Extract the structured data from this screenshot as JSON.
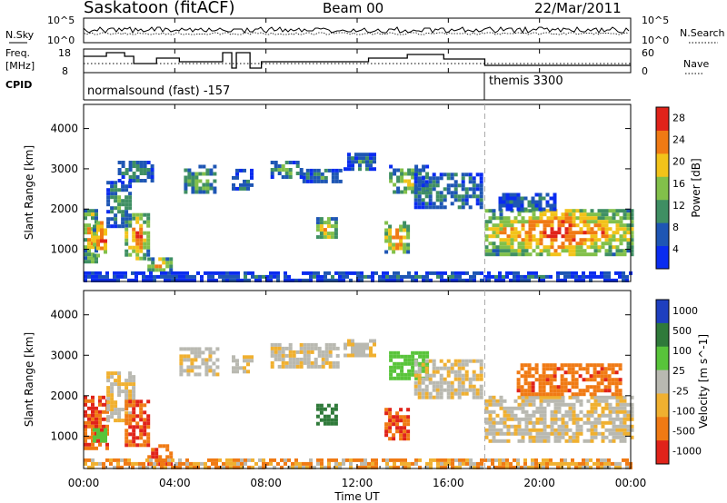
{
  "header": {
    "station": "Saskatoon (fitACF)",
    "beam": "Beam 00",
    "date": "22/Mar/2011"
  },
  "noise_panel": {
    "left_label": "N.Sky",
    "right_label": "N.Search",
    "tick_top": "10^5",
    "tick_bottom": "10^0",
    "right_tick_top": "10^5",
    "right_tick_bottom": "10^0"
  },
  "freq_panel": {
    "left_label_1": "Freq.",
    "left_label_2": "[MHz]",
    "right_label": "Nave",
    "left_ticks": [
      "18",
      "8"
    ],
    "right_ticks": [
      "60",
      "0"
    ]
  },
  "cpid": {
    "label": "CPID",
    "segments": [
      "normalsound (fast) -157",
      "themis 3300"
    ]
  },
  "x_axis": {
    "title": "Time UT",
    "tick_labels": [
      "00:00",
      "04:00",
      "08:00",
      "12:00",
      "16:00",
      "20:00",
      "00:00"
    ]
  },
  "chart_data": [
    {
      "type": "heatmap",
      "title": "Power",
      "ylabel": "Slant Range [km]",
      "xlabel": "Time UT",
      "xlim_hours": [
        0,
        24
      ],
      "ylim": [
        200,
        4600
      ],
      "y_ticks": [
        1000,
        2000,
        3000,
        4000
      ],
      "colorbar": {
        "label": "Power [dB]",
        "ticks": [
          "4",
          "8",
          "12",
          "16",
          "20",
          "24",
          "28"
        ],
        "colors": [
          "#0a2cf0",
          "#1e56b4",
          "#3f8f63",
          "#82c04a",
          "#f2c31a",
          "#f07a14",
          "#e0231a"
        ]
      },
      "regions": [
        {
          "t": [
            0.0,
            0.5
          ],
          "r": [
            700,
            2000
          ],
          "level": 0.7
        },
        {
          "t": [
            0.4,
            1.0
          ],
          "r": [
            800,
            1700
          ],
          "level": 0.85
        },
        {
          "t": [
            1.0,
            2.0
          ],
          "r": [
            1600,
            2700
          ],
          "level": 0.35
        },
        {
          "t": [
            1.8,
            2.8
          ],
          "r": [
            800,
            1900
          ],
          "level": 0.75
        },
        {
          "t": [
            2.8,
            3.8
          ],
          "r": [
            500,
            800
          ],
          "level": 0.7
        },
        {
          "t": [
            1.5,
            3.0
          ],
          "r": [
            2700,
            3200
          ],
          "level": 0.3
        },
        {
          "t": [
            4.4,
            5.8
          ],
          "r": [
            2400,
            3100
          ],
          "level": 0.45
        },
        {
          "t": [
            6.5,
            7.3
          ],
          "r": [
            2500,
            3000
          ],
          "level": 0.3
        },
        {
          "t": [
            8.2,
            9.6
          ],
          "r": [
            2800,
            3200
          ],
          "level": 0.4
        },
        {
          "t": [
            9.6,
            11.2
          ],
          "r": [
            2700,
            3000
          ],
          "level": 0.3
        },
        {
          "t": [
            10.2,
            11.0
          ],
          "r": [
            1300,
            1800
          ],
          "level": 0.65
        },
        {
          "t": [
            11.4,
            12.8
          ],
          "r": [
            3000,
            3400
          ],
          "level": 0.3
        },
        {
          "t": [
            13.2,
            14.2
          ],
          "r": [
            900,
            1700
          ],
          "level": 0.75
        },
        {
          "t": [
            13.4,
            15.0
          ],
          "r": [
            2400,
            3100
          ],
          "level": 0.5
        },
        {
          "t": [
            14.5,
            17.5
          ],
          "r": [
            2000,
            2900
          ],
          "level": 0.3
        },
        {
          "t": [
            17.6,
            24.0
          ],
          "r": [
            900,
            2000
          ],
          "level": 0.8
        },
        {
          "t": [
            18.2,
            20.6
          ],
          "r": [
            2000,
            2400
          ],
          "level": 0.25
        },
        {
          "t": [
            0.0,
            24.0
          ],
          "r": [
            250,
            450
          ],
          "level": 0.2
        }
      ]
    },
    {
      "type": "heatmap",
      "title": "Velocity",
      "ylabel": "Slant Range [km]",
      "xlabel": "Time UT",
      "xlim_hours": [
        0,
        24
      ],
      "ylim": [
        200,
        4600
      ],
      "y_ticks": [
        1000,
        2000,
        3000,
        4000
      ],
      "colorbar": {
        "label": "Velocity [m s^-1]",
        "ticks": [
          "1000",
          "500",
          "100",
          "25",
          "-25",
          "-100",
          "-500",
          "-1000"
        ],
        "colors": [
          "#1e3fbf",
          "#2f7a3a",
          "#58c43a",
          "#b9b9b1",
          "#f0b030",
          "#f07a14",
          "#e0231a"
        ]
      },
      "regions": [
        {
          "t": [
            0.0,
            1.0
          ],
          "r": [
            700,
            2000
          ],
          "v": -300
        },
        {
          "t": [
            0.4,
            0.9
          ],
          "r": [
            900,
            1200
          ],
          "v": 150
        },
        {
          "t": [
            1.0,
            2.2
          ],
          "r": [
            1400,
            2600
          ],
          "v": 0
        },
        {
          "t": [
            1.8,
            2.8
          ],
          "r": [
            800,
            1900
          ],
          "v": -300
        },
        {
          "t": [
            2.8,
            3.8
          ],
          "r": [
            300,
            800
          ],
          "v": -300
        },
        {
          "t": [
            4.2,
            5.8
          ],
          "r": [
            2500,
            3200
          ],
          "v": 0
        },
        {
          "t": [
            6.5,
            7.3
          ],
          "r": [
            2600,
            3000
          ],
          "v": 0
        },
        {
          "t": [
            8.2,
            11.2
          ],
          "r": [
            2700,
            3300
          ],
          "v": 0
        },
        {
          "t": [
            10.2,
            11.0
          ],
          "r": [
            1300,
            1800
          ],
          "v": 600
        },
        {
          "t": [
            11.4,
            12.8
          ],
          "r": [
            3000,
            3400
          ],
          "v": 0
        },
        {
          "t": [
            13.2,
            14.2
          ],
          "r": [
            900,
            1700
          ],
          "v": -300
        },
        {
          "t": [
            13.4,
            15.0
          ],
          "r": [
            2400,
            3100
          ],
          "v": 150
        },
        {
          "t": [
            14.5,
            17.5
          ],
          "r": [
            2000,
            2900
          ],
          "v": 0
        },
        {
          "t": [
            17.6,
            24.0
          ],
          "r": [
            900,
            2000
          ],
          "v": 0
        },
        {
          "t": [
            19.0,
            23.5
          ],
          "r": [
            2000,
            2800
          ],
          "v": -250
        },
        {
          "t": [
            0.0,
            24.0
          ],
          "r": [
            250,
            450
          ],
          "v": -60
        }
      ]
    }
  ]
}
